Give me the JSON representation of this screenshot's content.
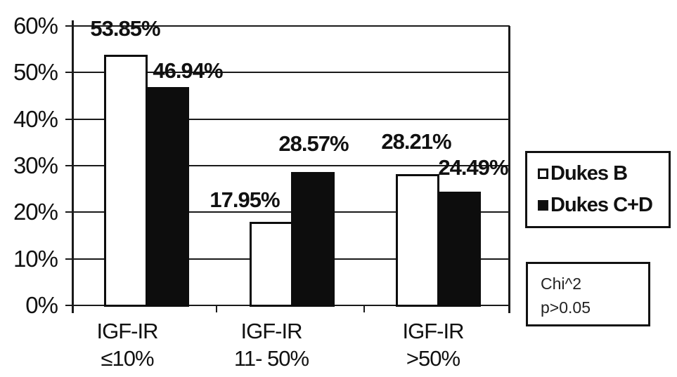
{
  "chart_data": {
    "type": "bar",
    "title": "",
    "xlabel": "",
    "ylabel": "",
    "categories": [
      {
        "line1": "IGF-IR",
        "line2": "≤10%"
      },
      {
        "line1": "IGF-IR",
        "line2": "11- 50%"
      },
      {
        "line1": "IGF-IR",
        "line2": ">50%"
      }
    ],
    "series": [
      {
        "name": "Dukes B",
        "fill": "#ffffff",
        "values": [
          53.85,
          17.95,
          28.21
        ]
      },
      {
        "name": "Dukes C+D",
        "fill": "#0d0d0d",
        "values": [
          46.94,
          28.57,
          24.49
        ]
      }
    ],
    "value_labels": [
      "53.85%",
      "46.94%",
      "17.95%",
      "28.57%",
      "28.21%",
      "24.49%"
    ],
    "y_axis": {
      "ticks": [
        "60%",
        "50%",
        "40%",
        "30%",
        "20%",
        "10%",
        "0%"
      ],
      "min": 0,
      "max": 60
    },
    "grid": true,
    "legend": {
      "position": "right"
    },
    "annotation": {
      "line1": "Chi^2",
      "line2": "p>0.05"
    },
    "colors": {
      "axis": "#1a1a1a",
      "text": "#111111",
      "bar_outline": "#0d0d0d",
      "background": "#ffffff"
    }
  }
}
